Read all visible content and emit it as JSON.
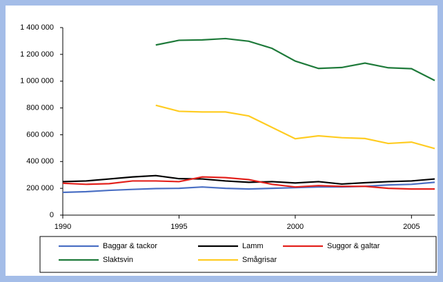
{
  "chart_data": {
    "type": "line",
    "x": [
      1990,
      1991,
      1992,
      1993,
      1994,
      1995,
      1996,
      1997,
      1998,
      1999,
      2000,
      2001,
      2002,
      2003,
      2004,
      2005,
      2006
    ],
    "xlim": [
      1990,
      2006
    ],
    "xticks": [
      1990,
      1995,
      2000,
      2005
    ],
    "ylim": [
      0,
      1400000
    ],
    "yticks": [
      0,
      {
        "value": 200000,
        "label": "200 000"
      },
      {
        "value": 400000,
        "label": "400 000"
      },
      {
        "value": 600000,
        "label": "600 000"
      },
      {
        "value": 800000,
        "label": "800 000"
      },
      {
        "value": 1000000,
        "label": "1 000 000"
      },
      {
        "value": 1200000,
        "label": "1 200 000"
      },
      {
        "value": 1400000,
        "label": "1 400 000"
      }
    ],
    "legend": "bottom",
    "series": [
      {
        "name": "Baggar & tackor",
        "color": "#4a6fc4",
        "values": [
          170000,
          175000,
          185000,
          192000,
          198000,
          200000,
          210000,
          200000,
          195000,
          200000,
          205000,
          210000,
          210000,
          215000,
          225000,
          230000,
          245000
        ]
      },
      {
        "name": "Lamm",
        "color": "#000000",
        "values": [
          250000,
          255000,
          270000,
          285000,
          295000,
          272000,
          270000,
          255000,
          245000,
          250000,
          240000,
          250000,
          232000,
          242000,
          250000,
          255000,
          270000
        ]
      },
      {
        "name": "Suggor & galtar",
        "color": "#e3211c",
        "values": [
          238000,
          230000,
          235000,
          255000,
          255000,
          250000,
          285000,
          280000,
          265000,
          230000,
          210000,
          220000,
          215000,
          215000,
          200000,
          195000,
          195000
        ]
      },
      {
        "name": "Slaktsvin",
        "color": "#1e7a3a",
        "values": [
          null,
          null,
          null,
          null,
          1270000,
          1305000,
          1308000,
          1318000,
          1298000,
          1245000,
          1150000,
          1095000,
          1102000,
          1135000,
          1100000,
          1093000,
          1005000
        ]
      },
      {
        "name": "Smågrisar",
        "color": "#ffcc22",
        "values": [
          null,
          null,
          null,
          null,
          820000,
          775000,
          770000,
          770000,
          740000,
          655000,
          570000,
          592000,
          578000,
          572000,
          535000,
          545000,
          497000
        ]
      }
    ]
  }
}
